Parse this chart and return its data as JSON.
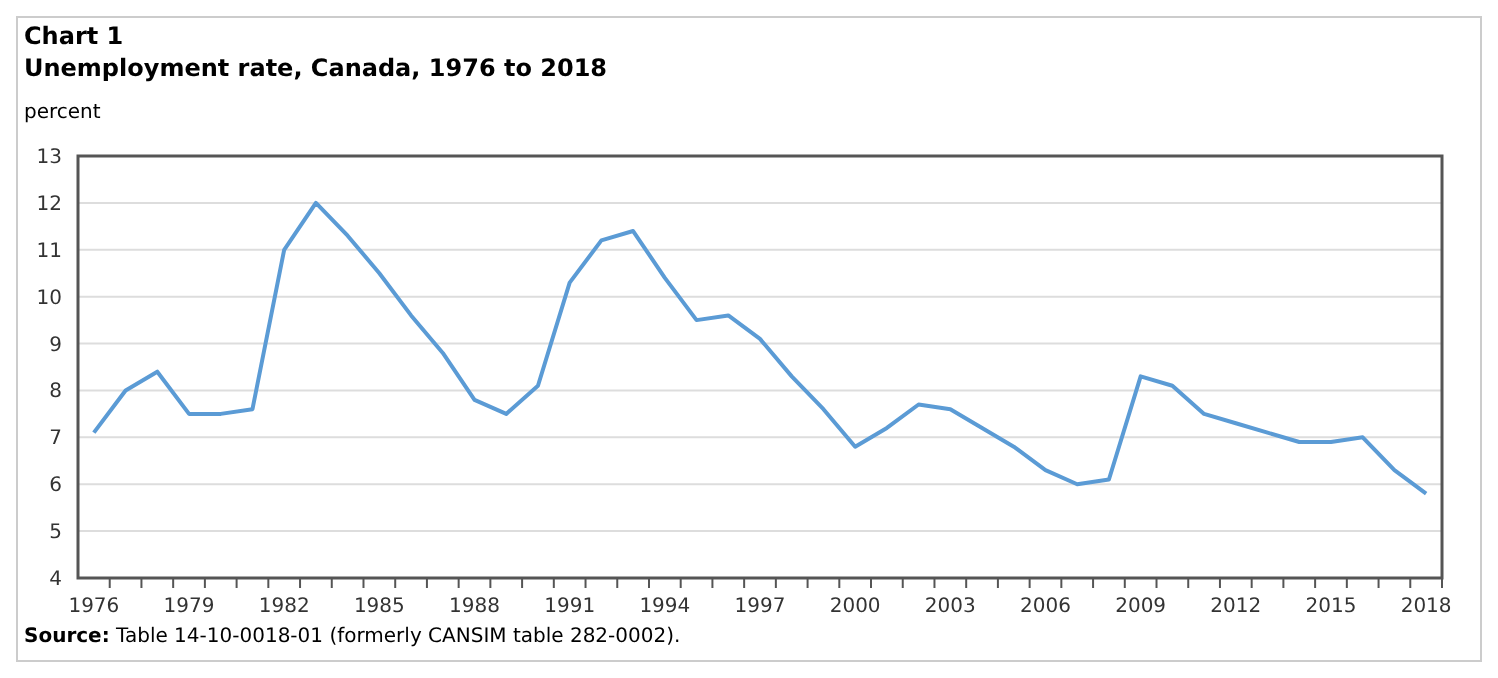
{
  "chart_data": {
    "type": "line",
    "title": "Chart 1",
    "subtitle": "Unemployment rate, Canada, 1976 to 2018",
    "ylabel": "percent",
    "categories": [
      "1976",
      null,
      null,
      "1979",
      null,
      null,
      "1982",
      null,
      null,
      "1985",
      null,
      null,
      "1988",
      null,
      null,
      "1991",
      null,
      null,
      "1994",
      null,
      null,
      "1997",
      null,
      null,
      "2000",
      null,
      null,
      "2003",
      null,
      null,
      "2006",
      null,
      null,
      "2009",
      null,
      null,
      "2012",
      null,
      null,
      "2015",
      null,
      null,
      "2018"
    ],
    "series": [
      {
        "color": "#5b9bd5",
        "values": [
          7.1,
          8.0,
          8.4,
          7.5,
          7.5,
          7.6,
          11.0,
          12.0,
          11.3,
          10.5,
          9.6,
          8.8,
          7.8,
          7.5,
          8.1,
          10.3,
          11.2,
          11.4,
          10.4,
          9.5,
          9.6,
          9.1,
          8.3,
          7.6,
          6.8,
          7.2,
          7.7,
          7.6,
          7.2,
          6.8,
          6.3,
          6.0,
          6.1,
          8.3,
          8.1,
          7.5,
          7.3,
          7.1,
          6.9,
          6.9,
          7.0,
          6.3,
          5.8
        ]
      }
    ],
    "ylim": [
      4,
      13
    ],
    "yticks": [
      4,
      5,
      6,
      7,
      8,
      9,
      10,
      11,
      12,
      13
    ],
    "grid": "y",
    "marker": "none",
    "line_style": "solid",
    "annotations": [
      "Source: Table 14-10-0018-01 (formerly CANSIM table 282-0002)."
    ]
  }
}
